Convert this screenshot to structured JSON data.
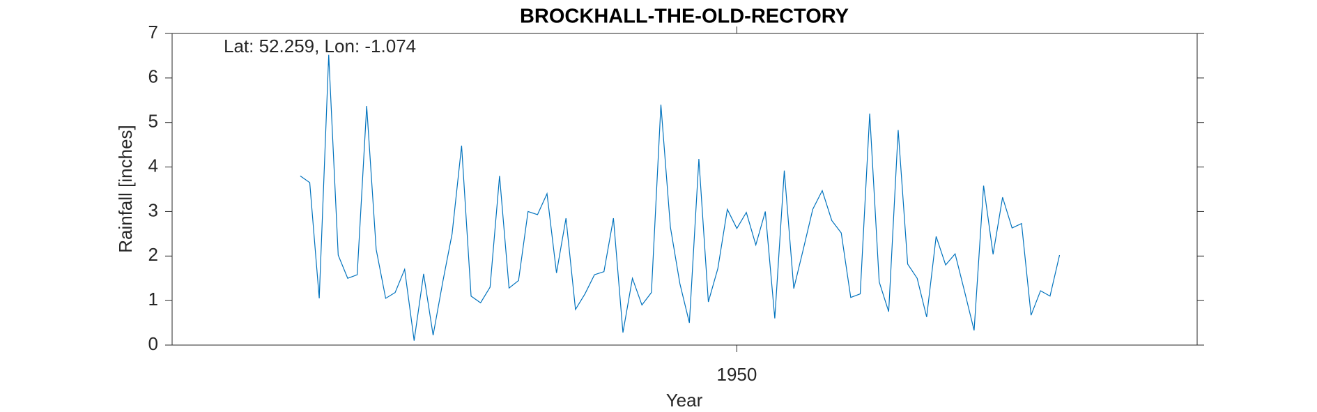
{
  "chart_data": {
    "type": "line",
    "title": "BROCKHALL-THE-OLD-RECTORY",
    "annotation": "Lat: 52.259, Lon: -1.074",
    "xlabel": "Year",
    "ylabel": "Rainfall [inches]",
    "x": [
      1904,
      1905,
      1906,
      1907,
      1908,
      1909,
      1910,
      1911,
      1912,
      1913,
      1914,
      1915,
      1916,
      1917,
      1918,
      1919,
      1920,
      1921,
      1922,
      1923,
      1924,
      1925,
      1926,
      1927,
      1928,
      1929,
      1930,
      1931,
      1932,
      1933,
      1934,
      1935,
      1936,
      1937,
      1938,
      1939,
      1940,
      1941,
      1942,
      1943,
      1944,
      1945,
      1946,
      1947,
      1948,
      1949,
      1950,
      1951,
      1952,
      1953,
      1954,
      1955,
      1956,
      1957,
      1958,
      1959,
      1960,
      1961,
      1962,
      1963,
      1964,
      1965,
      1966,
      1967,
      1968,
      1969,
      1970,
      1971,
      1972,
      1973,
      1974,
      1975,
      1976,
      1977,
      1978,
      1979,
      1980,
      1981,
      1982,
      1983,
      1984
    ],
    "series": [
      {
        "name": "Rainfall",
        "color": "#0072bd",
        "values": [
          3.8,
          3.65,
          1.05,
          6.52,
          2.02,
          1.5,
          1.58,
          5.37,
          2.15,
          1.05,
          1.18,
          1.7,
          0.1,
          1.6,
          0.22,
          1.4,
          2.5,
          4.48,
          1.1,
          0.95,
          1.3,
          3.8,
          1.28,
          1.45,
          3.0,
          2.93,
          3.4,
          1.62,
          2.85,
          0.8,
          1.15,
          1.58,
          1.65,
          2.85,
          0.28,
          1.5,
          0.9,
          1.18,
          5.4,
          2.65,
          1.38,
          0.5,
          4.18,
          0.97,
          1.72,
          3.05,
          2.62,
          2.98,
          2.25,
          3.0,
          0.6,
          3.92,
          1.27,
          2.15,
          3.05,
          3.47,
          2.8,
          2.52,
          1.07,
          1.15,
          5.2,
          1.42,
          0.75,
          4.83,
          1.82,
          1.5,
          0.63,
          2.44,
          1.8,
          2.05,
          1.2,
          0.33,
          3.58,
          2.04,
          3.32,
          2.63,
          2.73,
          0.67,
          1.22,
          1.1,
          2.02
        ]
      }
    ],
    "xlim": [
      1890.5,
      1998.5
    ],
    "xticks": [
      1950
    ],
    "ylim": [
      0,
      7
    ],
    "yticks": [
      0,
      1,
      2,
      3,
      4,
      5,
      6,
      7
    ],
    "grid": false
  }
}
